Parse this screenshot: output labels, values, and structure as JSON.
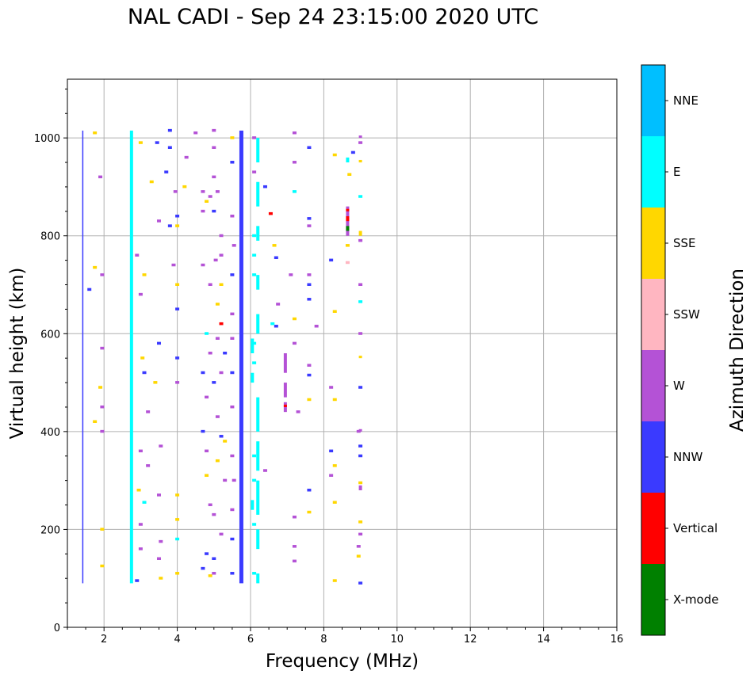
{
  "chart_data": {
    "type": "scatter",
    "title": "NAL CADI - Sep 24 23:15:00 2020 UTC",
    "xlabel": "Frequency (MHz)",
    "ylabel": "Virtual height (km)",
    "xlim": [
      1,
      16
    ],
    "ylim": [
      0,
      1120
    ],
    "xticks": [
      2,
      4,
      6,
      8,
      10,
      12,
      14,
      16
    ],
    "yticks": [
      0,
      200,
      400,
      600,
      800,
      1000
    ],
    "grid": true,
    "colorbar": {
      "label": "Azimuth Direction",
      "categories": [
        "X-mode",
        "Vertical",
        "NNW",
        "W",
        "SSW",
        "SSE",
        "E",
        "NNE"
      ],
      "colors": [
        "#008000",
        "#ff0000",
        "#3a3aff",
        "#b452d6",
        "#ffb6c1",
        "#ffd700",
        "#00ffff",
        "#00bfff"
      ]
    },
    "traces_note": "[freq_MHz, h_start_km, h_end_km, direction_index]",
    "traces": [
      [
        1.42,
        90,
        1015,
        2
      ],
      [
        2.75,
        90,
        1015,
        6
      ],
      [
        5.75,
        90,
        1015,
        2
      ],
      [
        6.2,
        90,
        110,
        6
      ],
      [
        6.2,
        160,
        200,
        6
      ],
      [
        6.2,
        230,
        300,
        6
      ],
      [
        6.2,
        320,
        380,
        6
      ],
      [
        6.2,
        400,
        470,
        6
      ],
      [
        6.2,
        600,
        640,
        6
      ],
      [
        6.2,
        690,
        720,
        6
      ],
      [
        6.2,
        790,
        820,
        6
      ],
      [
        6.2,
        860,
        910,
        6
      ],
      [
        6.2,
        950,
        1000,
        6
      ],
      [
        6.05,
        240,
        260,
        6
      ],
      [
        6.05,
        500,
        520,
        6
      ],
      [
        6.05,
        560,
        590,
        6
      ],
      [
        6.95,
        440,
        460,
        3
      ],
      [
        6.95,
        470,
        500,
        3
      ],
      [
        6.95,
        520,
        560,
        3
      ],
      [
        6.95,
        450,
        455,
        1
      ],
      [
        8.65,
        800,
        860,
        3
      ],
      [
        8.65,
        830,
        840,
        1
      ],
      [
        8.65,
        810,
        820,
        0
      ],
      [
        8.65,
        850,
        855,
        1
      ],
      [
        8.65,
        950,
        960,
        6
      ],
      [
        9.0,
        280,
        290,
        3
      ],
      [
        9.0,
        400,
        405,
        3
      ],
      [
        9.0,
        550,
        555,
        5
      ],
      [
        9.0,
        800,
        810,
        5
      ],
      [
        9.0,
        950,
        955,
        5
      ],
      [
        9.0,
        1000,
        1005,
        3
      ]
    ],
    "points_note": "[freq_MHz, height_km, direction_index]",
    "points": [
      [
        1.75,
        1010,
        5
      ],
      [
        1.75,
        735,
        5
      ],
      [
        1.9,
        920,
        3
      ],
      [
        1.95,
        720,
        3
      ],
      [
        1.95,
        570,
        3
      ],
      [
        1.9,
        490,
        5
      ],
      [
        1.95,
        450,
        3
      ],
      [
        1.75,
        420,
        5
      ],
      [
        1.95,
        400,
        3
      ],
      [
        1.95,
        200,
        5
      ],
      [
        1.95,
        125,
        5
      ],
      [
        1.6,
        690,
        2
      ],
      [
        3.0,
        990,
        5
      ],
      [
        2.9,
        760,
        3
      ],
      [
        3.1,
        720,
        5
      ],
      [
        3.0,
        680,
        3
      ],
      [
        3.2,
        440,
        3
      ],
      [
        3.05,
        550,
        5
      ],
      [
        3.1,
        520,
        2
      ],
      [
        3.4,
        500,
        5
      ],
      [
        3.0,
        360,
        3
      ],
      [
        3.2,
        330,
        3
      ],
      [
        3.1,
        255,
        6
      ],
      [
        2.95,
        280,
        5
      ],
      [
        3.0,
        210,
        3
      ],
      [
        3.0,
        160,
        3
      ],
      [
        2.9,
        95,
        2
      ],
      [
        3.5,
        830,
        3
      ],
      [
        3.5,
        580,
        2
      ],
      [
        3.55,
        370,
        3
      ],
      [
        3.5,
        270,
        3
      ],
      [
        3.55,
        175,
        3
      ],
      [
        3.5,
        140,
        3
      ],
      [
        3.55,
        100,
        5
      ],
      [
        3.3,
        910,
        5
      ],
      [
        3.45,
        990,
        2
      ],
      [
        3.8,
        1015,
        2
      ],
      [
        3.8,
        980,
        2
      ],
      [
        3.7,
        930,
        2
      ],
      [
        3.95,
        890,
        3
      ],
      [
        4.0,
        840,
        2
      ],
      [
        4.0,
        820,
        5
      ],
      [
        3.8,
        820,
        2
      ],
      [
        3.9,
        740,
        3
      ],
      [
        4.0,
        700,
        5
      ],
      [
        4.0,
        650,
        2
      ],
      [
        4.0,
        550,
        2
      ],
      [
        4.0,
        500,
        3
      ],
      [
        4.0,
        270,
        5
      ],
      [
        4.0,
        220,
        5
      ],
      [
        4.0,
        180,
        6
      ],
      [
        4.0,
        110,
        5
      ],
      [
        4.25,
        960,
        3
      ],
      [
        4.2,
        900,
        5
      ],
      [
        4.5,
        1010,
        3
      ],
      [
        4.7,
        890,
        3
      ],
      [
        4.7,
        850,
        3
      ],
      [
        4.8,
        870,
        5
      ],
      [
        4.9,
        880,
        3
      ],
      [
        4.7,
        740,
        3
      ],
      [
        4.9,
        700,
        3
      ],
      [
        4.8,
        600,
        6
      ],
      [
        4.9,
        560,
        3
      ],
      [
        4.7,
        520,
        2
      ],
      [
        4.8,
        470,
        3
      ],
      [
        4.7,
        400,
        2
      ],
      [
        4.8,
        360,
        3
      ],
      [
        4.8,
        310,
        5
      ],
      [
        4.9,
        250,
        3
      ],
      [
        4.8,
        150,
        2
      ],
      [
        4.7,
        120,
        2
      ],
      [
        4.9,
        105,
        5
      ],
      [
        5.0,
        1015,
        3
      ],
      [
        5.0,
        980,
        3
      ],
      [
        5.0,
        920,
        3
      ],
      [
        5.1,
        890,
        3
      ],
      [
        5.0,
        850,
        2
      ],
      [
        5.2,
        800,
        3
      ],
      [
        5.2,
        760,
        3
      ],
      [
        5.05,
        750,
        3
      ],
      [
        5.2,
        700,
        5
      ],
      [
        5.1,
        660,
        5
      ],
      [
        5.2,
        620,
        1
      ],
      [
        5.1,
        590,
        3
      ],
      [
        5.3,
        560,
        2
      ],
      [
        5.2,
        520,
        3
      ],
      [
        5.0,
        500,
        2
      ],
      [
        5.1,
        430,
        3
      ],
      [
        5.2,
        390,
        2
      ],
      [
        5.3,
        380,
        5
      ],
      [
        5.1,
        340,
        5
      ],
      [
        5.3,
        300,
        3
      ],
      [
        5.0,
        230,
        3
      ],
      [
        5.2,
        190,
        3
      ],
      [
        5.0,
        140,
        2
      ],
      [
        5.0,
        110,
        3
      ],
      [
        5.5,
        1000,
        5
      ],
      [
        5.5,
        950,
        2
      ],
      [
        5.5,
        840,
        3
      ],
      [
        5.55,
        780,
        3
      ],
      [
        5.5,
        720,
        2
      ],
      [
        5.5,
        640,
        3
      ],
      [
        5.5,
        590,
        3
      ],
      [
        5.5,
        520,
        2
      ],
      [
        5.5,
        450,
        3
      ],
      [
        5.5,
        350,
        3
      ],
      [
        5.55,
        300,
        3
      ],
      [
        5.5,
        240,
        3
      ],
      [
        5.5,
        180,
        2
      ],
      [
        5.5,
        110,
        2
      ],
      [
        6.1,
        1000,
        3
      ],
      [
        6.1,
        930,
        3
      ],
      [
        6.1,
        800,
        6
      ],
      [
        6.1,
        760,
        6
      ],
      [
        6.1,
        720,
        6
      ],
      [
        6.1,
        580,
        6
      ],
      [
        6.1,
        540,
        6
      ],
      [
        6.1,
        350,
        6
      ],
      [
        6.1,
        300,
        6
      ],
      [
        6.1,
        210,
        6
      ],
      [
        6.1,
        110,
        6
      ],
      [
        6.4,
        900,
        2
      ],
      [
        6.55,
        845,
        1
      ],
      [
        6.65,
        780,
        5
      ],
      [
        6.7,
        755,
        2
      ],
      [
        6.75,
        660,
        3
      ],
      [
        6.7,
        615,
        2
      ],
      [
        6.6,
        620,
        6
      ],
      [
        6.4,
        320,
        3
      ],
      [
        7.2,
        1010,
        3
      ],
      [
        7.2,
        950,
        3
      ],
      [
        7.2,
        890,
        6
      ],
      [
        7.1,
        720,
        3
      ],
      [
        7.2,
        630,
        5
      ],
      [
        7.2,
        580,
        3
      ],
      [
        7.3,
        440,
        3
      ],
      [
        7.2,
        225,
        3
      ],
      [
        7.2,
        165,
        3
      ],
      [
        7.2,
        135,
        3
      ],
      [
        7.6,
        980,
        2
      ],
      [
        7.6,
        835,
        2
      ],
      [
        7.6,
        820,
        3
      ],
      [
        7.6,
        720,
        3
      ],
      [
        7.6,
        700,
        2
      ],
      [
        7.6,
        670,
        2
      ],
      [
        7.6,
        535,
        3
      ],
      [
        7.6,
        515,
        2
      ],
      [
        7.6,
        465,
        5
      ],
      [
        7.6,
        280,
        2
      ],
      [
        7.6,
        235,
        5
      ],
      [
        7.8,
        615,
        3
      ],
      [
        8.2,
        750,
        2
      ],
      [
        8.2,
        490,
        3
      ],
      [
        8.2,
        360,
        2
      ],
      [
        8.2,
        310,
        3
      ],
      [
        8.3,
        645,
        5
      ],
      [
        8.3,
        465,
        5
      ],
      [
        8.3,
        330,
        5
      ],
      [
        8.3,
        255,
        5
      ],
      [
        8.3,
        95,
        5
      ],
      [
        8.3,
        965,
        5
      ],
      [
        8.65,
        780,
        5
      ],
      [
        8.65,
        745,
        4
      ],
      [
        8.8,
        970,
        2
      ],
      [
        8.7,
        925,
        5
      ],
      [
        9.0,
        880,
        6
      ],
      [
        9.0,
        790,
        3
      ],
      [
        9.0,
        700,
        3
      ],
      [
        9.0,
        665,
        6
      ],
      [
        9.0,
        600,
        3
      ],
      [
        9.0,
        490,
        2
      ],
      [
        9.0,
        370,
        2
      ],
      [
        9.0,
        350,
        2
      ],
      [
        8.95,
        400,
        3
      ],
      [
        9.0,
        295,
        5
      ],
      [
        9.0,
        215,
        5
      ],
      [
        9.0,
        190,
        3
      ],
      [
        8.95,
        165,
        3
      ],
      [
        8.95,
        145,
        5
      ],
      [
        9.0,
        90,
        2
      ],
      [
        9.0,
        990,
        3
      ]
    ]
  }
}
